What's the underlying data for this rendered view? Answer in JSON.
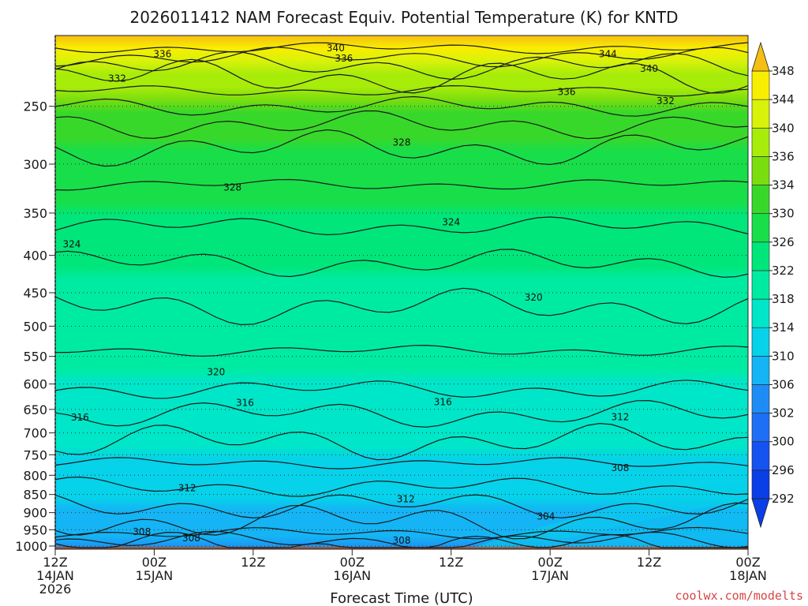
{
  "header": {
    "title": "2026011412 NAM Forecast Equiv. Potential Temperature (K) for KNTD"
  },
  "footer": {
    "credit": "coolwx.com/modelts"
  },
  "colors": {
    "ground": "#a0522d",
    "contour": "#1a1a1a",
    "credit": "#d64545"
  },
  "chart_data": {
    "type": "heatmap",
    "title": "2026011412 NAM Forecast Equiv. Potential Temperature (K) for KNTD",
    "xlabel": "Forecast Time (UTC)",
    "ylabel": "",
    "x_ticks": [
      {
        "hour": 0,
        "line1": "12Z",
        "line2": "14JAN",
        "line3": "2026"
      },
      {
        "hour": 12,
        "line1": "00Z",
        "line2": "15JAN",
        "line3": ""
      },
      {
        "hour": 24,
        "line1": "12Z",
        "line2": "",
        "line3": ""
      },
      {
        "hour": 36,
        "line1": "00Z",
        "line2": "16JAN",
        "line3": ""
      },
      {
        "hour": 48,
        "line1": "12Z",
        "line2": "",
        "line3": ""
      },
      {
        "hour": 60,
        "line1": "00Z",
        "line2": "17JAN",
        "line3": ""
      },
      {
        "hour": 72,
        "line1": "12Z",
        "line2": "",
        "line3": ""
      },
      {
        "hour": 84,
        "line1": "00Z",
        "line2": "18JAN",
        "line3": ""
      }
    ],
    "xlim": [
      0,
      84
    ],
    "y_ticks": [
      250,
      300,
      350,
      400,
      450,
      500,
      550,
      600,
      650,
      700,
      750,
      800,
      850,
      900,
      950,
      1000
    ],
    "ylim": [
      200,
      1010
    ],
    "y_scale": "log-pressure",
    "surface_pressure_hpa": 1010,
    "grid": true,
    "colorbar": {
      "levels": [
        292,
        296,
        300,
        302,
        306,
        310,
        314,
        318,
        322,
        326,
        330,
        334,
        336,
        340,
        344,
        348
      ],
      "colors": [
        "#0a3ee6",
        "#1552f0",
        "#1e6ff5",
        "#1e8cf5",
        "#14b4f5",
        "#06d2ea",
        "#00e6c8",
        "#00eba2",
        "#00e67a",
        "#18de4a",
        "#38d82a",
        "#7ade0e",
        "#a8ec0a",
        "#d8f20a",
        "#f8ee00",
        "#f6be14"
      ],
      "extend": "both"
    },
    "theta_e_profile_K": [
      {
        "p": 200,
        "theta_e": 348
      },
      {
        "p": 230,
        "theta_e": 338
      },
      {
        "p": 280,
        "theta_e": 330
      },
      {
        "p": 350,
        "theta_e": 326
      },
      {
        "p": 420,
        "theta_e": 322
      },
      {
        "p": 550,
        "theta_e": 319
      },
      {
        "p": 700,
        "theta_e": 315
      },
      {
        "p": 800,
        "theta_e": 312
      },
      {
        "p": 900,
        "theta_e": 309
      },
      {
        "p": 980,
        "theta_e": 306
      },
      {
        "p": 1005,
        "theta_e": 302
      }
    ],
    "contour_labels": [
      {
        "value": "340",
        "hour": 34,
        "p": 208
      },
      {
        "value": "344",
        "hour": 67,
        "p": 212
      },
      {
        "value": "336",
        "hour": 13,
        "p": 212
      },
      {
        "value": "336",
        "hour": 35,
        "p": 215
      },
      {
        "value": "340",
        "hour": 72,
        "p": 222
      },
      {
        "value": "332",
        "hour": 7.5,
        "p": 229
      },
      {
        "value": "336",
        "hour": 62,
        "p": 239
      },
      {
        "value": "332",
        "hour": 74,
        "p": 246
      },
      {
        "value": "328",
        "hour": 42,
        "p": 280
      },
      {
        "value": "328",
        "hour": 21.5,
        "p": 323
      },
      {
        "value": "324",
        "hour": 48,
        "p": 360
      },
      {
        "value": "324",
        "hour": 2,
        "p": 386
      },
      {
        "value": "320",
        "hour": 58,
        "p": 457
      },
      {
        "value": "320",
        "hour": 19.5,
        "p": 578
      },
      {
        "value": "316",
        "hour": 47,
        "p": 635
      },
      {
        "value": "316",
        "hour": 23,
        "p": 637
      },
      {
        "value": "316",
        "hour": 3,
        "p": 667
      },
      {
        "value": "312",
        "hour": 68.5,
        "p": 666
      },
      {
        "value": "308",
        "hour": 68.5,
        "p": 782
      },
      {
        "value": "312",
        "hour": 16,
        "p": 833
      },
      {
        "value": "312",
        "hour": 42.5,
        "p": 862
      },
      {
        "value": "304",
        "hour": 59.5,
        "p": 911
      },
      {
        "value": "308",
        "hour": 10.5,
        "p": 956
      },
      {
        "value": "308",
        "hour": 16.5,
        "p": 976
      },
      {
        "value": "308",
        "hour": 42,
        "p": 983
      }
    ]
  }
}
